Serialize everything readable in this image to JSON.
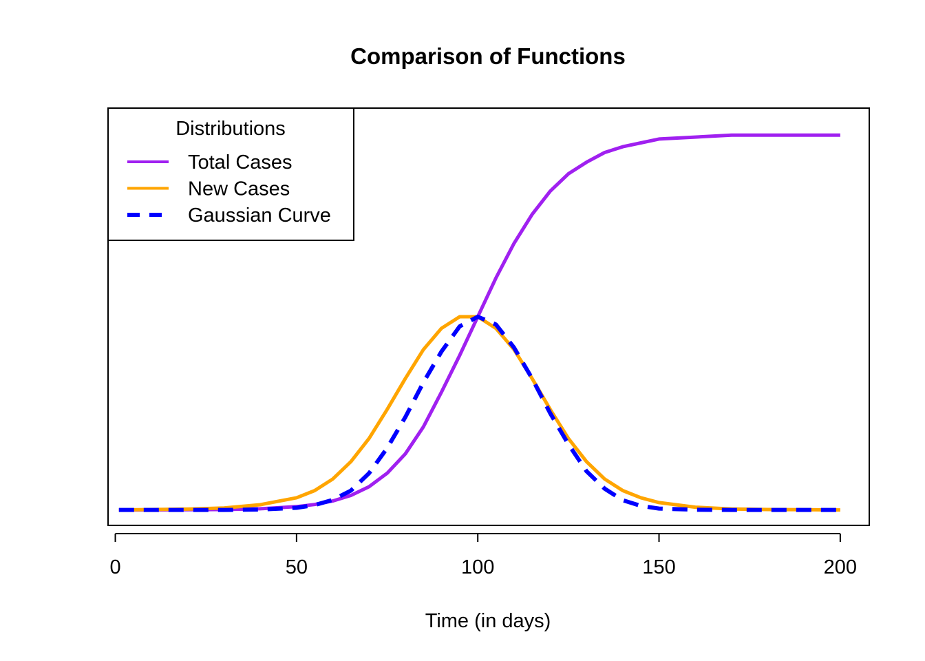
{
  "chart_data": {
    "type": "line",
    "title": "Comparison of Functions",
    "xlabel": "Time (in days)",
    "ylabel": "",
    "xlim": [
      -2,
      208
    ],
    "ylim": [
      -0.08,
      2.08
    ],
    "x_ticks": [
      0,
      50,
      100,
      150,
      200
    ],
    "y_axis_visible": false,
    "grid": false,
    "legend": {
      "title": "Distributions",
      "placement": "top-left",
      "entries": [
        {
          "label": "Total Cases",
          "color": "#A020F0",
          "style": "solid"
        },
        {
          "label": "New Cases",
          "color": "#FFA500",
          "style": "solid"
        },
        {
          "label": "Gaussian Curve",
          "color": "#0000FF",
          "style": "dashed"
        }
      ]
    },
    "series": [
      {
        "name": "Total Cases",
        "color": "#A020F0",
        "style": "solid",
        "x": [
          1,
          10,
          20,
          30,
          40,
          50,
          55,
          60,
          65,
          70,
          75,
          80,
          85,
          90,
          95,
          100,
          105,
          110,
          115,
          120,
          125,
          130,
          135,
          140,
          145,
          150,
          160,
          170,
          180,
          190,
          200
        ],
        "y": [
          0.0,
          0.0,
          0.001,
          0.002,
          0.006,
          0.017,
          0.028,
          0.046,
          0.075,
          0.12,
          0.19,
          0.29,
          0.43,
          0.61,
          0.8,
          1.0,
          1.2,
          1.38,
          1.53,
          1.65,
          1.74,
          1.8,
          1.85,
          1.88,
          1.9,
          1.92,
          1.93,
          1.94,
          1.94,
          1.94,
          1.94
        ]
      },
      {
        "name": "New Cases",
        "color": "#FFA500",
        "style": "solid",
        "x": [
          1,
          10,
          20,
          30,
          40,
          50,
          55,
          60,
          65,
          70,
          75,
          80,
          85,
          90,
          95,
          100,
          105,
          110,
          115,
          120,
          125,
          130,
          135,
          140,
          145,
          150,
          160,
          170,
          180,
          190,
          200
        ],
        "y": [
          0.0,
          0.002,
          0.004,
          0.01,
          0.027,
          0.063,
          0.1,
          0.16,
          0.25,
          0.37,
          0.52,
          0.68,
          0.83,
          0.94,
          1.0,
          1.0,
          0.94,
          0.83,
          0.68,
          0.52,
          0.37,
          0.25,
          0.16,
          0.1,
          0.063,
          0.038,
          0.014,
          0.005,
          0.002,
          0.001,
          0.0
        ]
      },
      {
        "name": "Gaussian Curve",
        "color": "#0000FF",
        "style": "dashed",
        "x": [
          1,
          10,
          20,
          30,
          40,
          50,
          55,
          60,
          65,
          70,
          75,
          80,
          85,
          90,
          95,
          100,
          105,
          110,
          115,
          120,
          125,
          130,
          135,
          140,
          145,
          150,
          160,
          170,
          180,
          190,
          200
        ],
        "y": [
          0.0,
          0.0,
          0.0,
          0.0,
          0.002,
          0.011,
          0.025,
          0.052,
          0.1,
          0.19,
          0.32,
          0.48,
          0.66,
          0.82,
          0.95,
          1.0,
          0.96,
          0.84,
          0.68,
          0.5,
          0.34,
          0.2,
          0.11,
          0.05,
          0.021,
          0.007,
          0.001,
          0.0,
          0.0,
          0.0,
          0.0
        ]
      }
    ]
  }
}
